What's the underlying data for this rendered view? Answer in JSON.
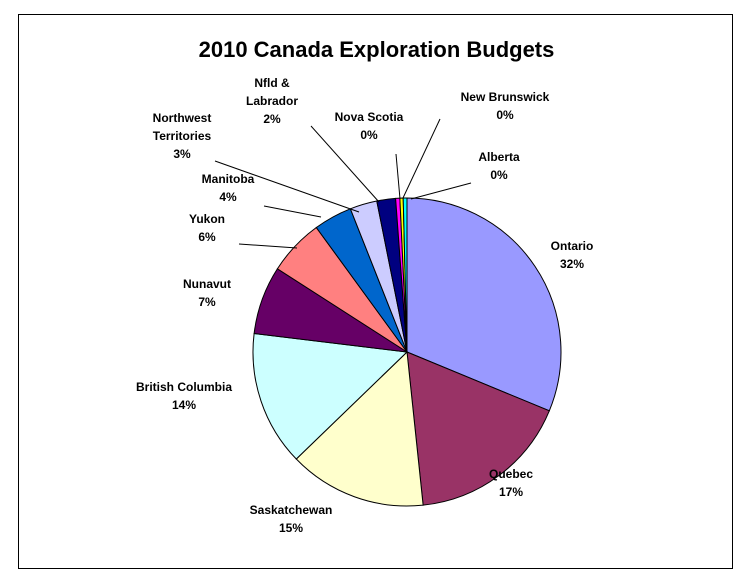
{
  "chart_data": {
    "type": "pie",
    "title": "2010 Canada Exploration Budgets",
    "slices": [
      {
        "label": [
          "Ontario"
        ],
        "pct_text": "32%",
        "value": 31.8,
        "color": "#9999FF"
      },
      {
        "label": [
          "Quebec"
        ],
        "pct_text": "17%",
        "value": 17.4,
        "color": "#993366"
      },
      {
        "label": [
          "Saskatchewan"
        ],
        "pct_text": "15%",
        "value": 14.7,
        "color": "#FFFFCC"
      },
      {
        "label": [
          "British Columbia"
        ],
        "pct_text": "14%",
        "value": 14.4,
        "color": "#CCFFFF"
      },
      {
        "label": [
          "Nunavut"
        ],
        "pct_text": "7%",
        "value": 7.3,
        "color": "#660066"
      },
      {
        "label": [
          "Yukon"
        ],
        "pct_text": "6%",
        "value": 6.0,
        "color": "#FF8080"
      },
      {
        "label": [
          "Manitoba"
        ],
        "pct_text": "4%",
        "value": 4.1,
        "color": "#0066CC"
      },
      {
        "label": [
          "Northwest",
          "Territories"
        ],
        "pct_text": "3%",
        "value": 2.9,
        "color": "#CCCCFF"
      },
      {
        "label": [
          "Nfld &",
          "Labrador"
        ],
        "pct_text": "2%",
        "value": 2.0,
        "color": "#000080"
      },
      {
        "label": [
          "Nova Scotia"
        ],
        "pct_text": "0%",
        "value": 0.45,
        "color": "#FF00FF"
      },
      {
        "label": [
          "New Brunswick"
        ],
        "pct_text": "0%",
        "value": 0.35,
        "color": "#FFFF00"
      },
      {
        "label": [
          "Alberta"
        ],
        "pct_text": "0%",
        "value": 0.4,
        "color": "#00FFFF"
      }
    ]
  }
}
